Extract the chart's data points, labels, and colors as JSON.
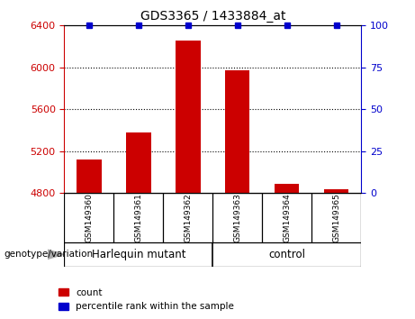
{
  "title": "GDS3365 / 1433884_at",
  "samples": [
    "GSM149360",
    "GSM149361",
    "GSM149362",
    "GSM149363",
    "GSM149364",
    "GSM149365"
  ],
  "counts": [
    5120,
    5380,
    6260,
    5970,
    4890,
    4840
  ],
  "percentile_ranks": [
    100,
    100,
    100,
    100,
    100,
    100
  ],
  "bar_color": "#cc0000",
  "dot_color": "#0000cc",
  "ylim_left": [
    4800,
    6400
  ],
  "ylim_right": [
    0,
    100
  ],
  "yticks_left": [
    4800,
    5200,
    5600,
    6000,
    6400
  ],
  "yticks_right": [
    0,
    25,
    50,
    75,
    100
  ],
  "groups": [
    {
      "label": "Harlequin mutant",
      "start": 0,
      "end": 3
    },
    {
      "label": "control",
      "start": 3,
      "end": 6
    }
  ],
  "group_color": "#90ee90",
  "sample_box_color": "#d3d3d3",
  "group_label_prefix": "genotype/variation",
  "legend_count_label": "count",
  "legend_percentile_label": "percentile rank within the sample",
  "background_color": "#ffffff",
  "tick_label_color_left": "#cc0000",
  "tick_label_color_right": "#0000cc",
  "bar_bottom": 4800,
  "x_positions": [
    0,
    1,
    2,
    3,
    4,
    5
  ]
}
